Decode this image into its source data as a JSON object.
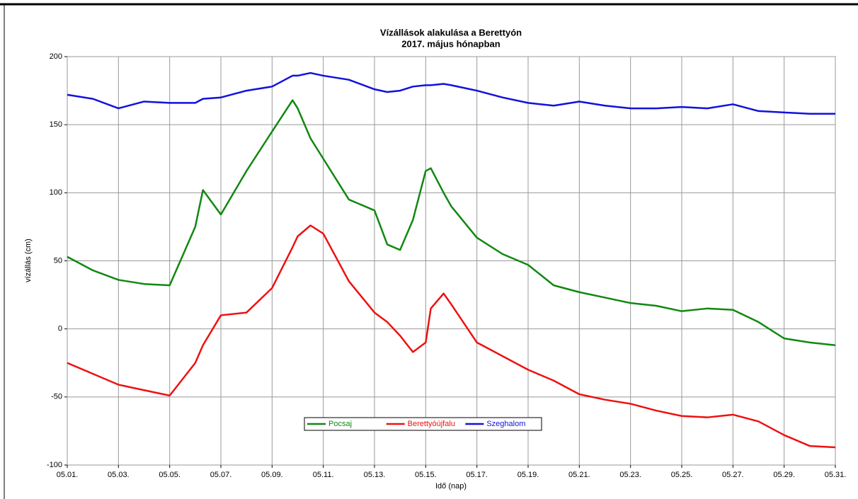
{
  "chart_data": {
    "type": "line",
    "title": "Vízállások alakulása a Berettyón",
    "subtitle": "2017. május hónapban",
    "ylabel": "vízállás (cm)",
    "xlabel": "Idő (nap)",
    "x": [
      1,
      2,
      3,
      4,
      5,
      6,
      6.3,
      7,
      8,
      9,
      9.8,
      10,
      10.5,
      11,
      12,
      13,
      13.5,
      14,
      14.5,
      15,
      15.2,
      15.7,
      16,
      17,
      18,
      19,
      20,
      21,
      22,
      23,
      24,
      25,
      26,
      27,
      28,
      29,
      30,
      31
    ],
    "series": [
      {
        "name": "Pocsaj",
        "color": "#118811",
        "values": [
          53,
          43,
          36,
          33,
          32,
          75,
          102,
          84,
          116,
          145,
          168,
          162,
          140,
          125,
          95,
          87,
          62,
          58,
          80,
          116,
          118,
          100,
          90,
          67,
          55,
          47,
          32,
          27,
          23,
          19,
          17,
          13,
          15,
          14,
          5,
          -7,
          -10,
          -12
        ]
      },
      {
        "name": "Berettyóújfalu",
        "color": "#ee1111",
        "values": [
          -25,
          -33,
          -41,
          -45,
          -49,
          -25,
          -12,
          10,
          12,
          30,
          60,
          68,
          76,
          70,
          35,
          12,
          5,
          -5,
          -17,
          -10,
          15,
          26,
          18,
          -10,
          -20,
          -30,
          -38,
          -48,
          -52,
          -55,
          -60,
          -64,
          -65,
          -63,
          -68,
          -78,
          -86,
          -87
        ]
      },
      {
        "name": "Szeghalom",
        "color": "#1111dd",
        "values": [
          172,
          169,
          162,
          167,
          166,
          166,
          169,
          170,
          175,
          178,
          186,
          186,
          188,
          186,
          183,
          176,
          174,
          175,
          178,
          179,
          179,
          180,
          179,
          175,
          170,
          166,
          164,
          167,
          164,
          162,
          162,
          163,
          162,
          165,
          160,
          159,
          158,
          158
        ]
      }
    ],
    "xlim": [
      1,
      31
    ],
    "xticks": [
      {
        "value": 1,
        "label": "05.01."
      },
      {
        "value": 3,
        "label": "05.03."
      },
      {
        "value": 5,
        "label": "05.05."
      },
      {
        "value": 7,
        "label": "05.07."
      },
      {
        "value": 9,
        "label": "05.09."
      },
      {
        "value": 11,
        "label": "05.11."
      },
      {
        "value": 13,
        "label": "05.13."
      },
      {
        "value": 15,
        "label": "05.15."
      },
      {
        "value": 17,
        "label": "05.17."
      },
      {
        "value": 19,
        "label": "05.19."
      },
      {
        "value": 21,
        "label": "05.21."
      },
      {
        "value": 23,
        "label": "05.23."
      },
      {
        "value": 25,
        "label": "05.25."
      },
      {
        "value": 27,
        "label": "05.27."
      },
      {
        "value": 29,
        "label": "05.29."
      },
      {
        "value": 31,
        "label": "05.31."
      }
    ],
    "ylim": [
      -100,
      200
    ],
    "yticks": [
      -100,
      -50,
      0,
      50,
      100,
      150,
      200
    ],
    "grid": true
  }
}
